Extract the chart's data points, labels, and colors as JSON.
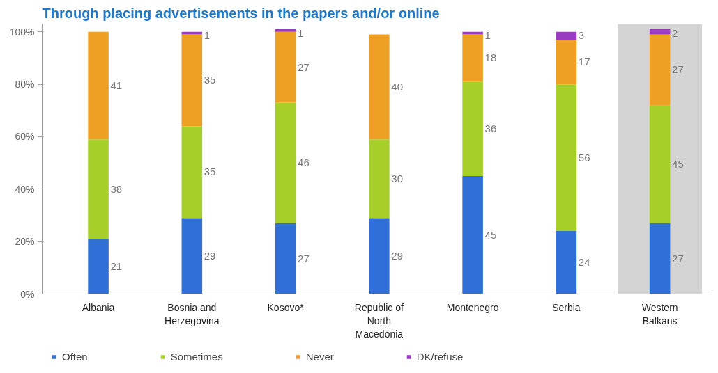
{
  "chart_data": {
    "type": "bar",
    "stacked": true,
    "title": "Through placing advertisements in the papers and/or online",
    "categories": [
      "Albania",
      "Bosnia and Herzegovina",
      "Kosovo*",
      "Republic of North Macedonia",
      "Montenegro",
      "Serbia",
      "Western Balkans"
    ],
    "series": [
      {
        "name": "Often",
        "color": "#2f6fd6",
        "values": [
          21,
          29,
          27,
          29,
          45,
          24,
          27
        ]
      },
      {
        "name": "Sometimes",
        "color": "#a6cf2a",
        "values": [
          38,
          35,
          46,
          30,
          36,
          56,
          45
        ]
      },
      {
        "name": "Never",
        "color": "#eea024",
        "values": [
          41,
          35,
          27,
          40,
          18,
          17,
          27
        ]
      },
      {
        "name": "DK/refuse",
        "color": "#9a3cbf",
        "values": [
          null,
          1,
          1,
          null,
          1,
          3,
          2
        ]
      }
    ],
    "ylim": [
      0,
      103
    ],
    "yticks": [
      {
        "value": 0,
        "label": "0%"
      },
      {
        "value": 20,
        "label": "20%"
      },
      {
        "value": 40,
        "label": "40%"
      },
      {
        "value": 60,
        "label": "60%"
      },
      {
        "value": 80,
        "label": "80%"
      },
      {
        "value": 100,
        "label": "100%"
      }
    ],
    "bands": [
      {
        "axis": "x",
        "from": "Western Balkans",
        "to": "Western Balkans",
        "color": "#d4d4d4"
      }
    ],
    "data_labels": true,
    "grid": false,
    "legend": "bottom"
  }
}
